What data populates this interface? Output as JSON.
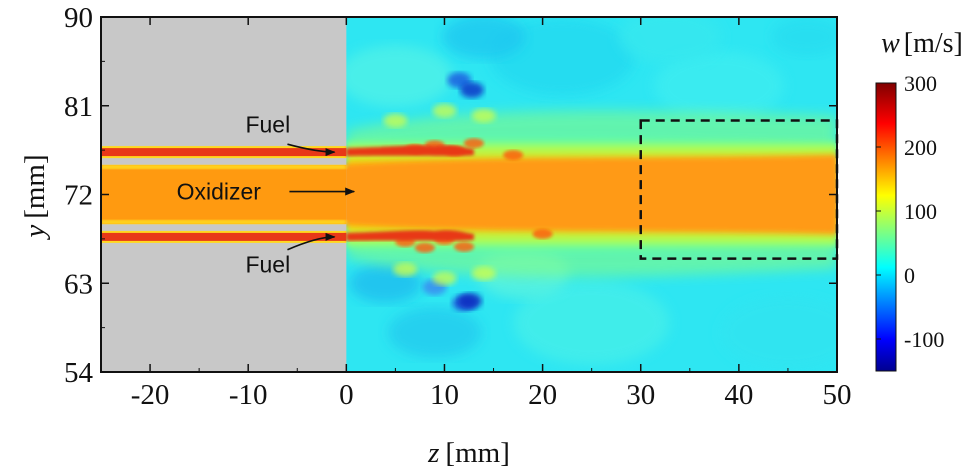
{
  "chart_data": {
    "type": "heatmap",
    "xlabel_var": "z",
    "xlabel_unit": "[mm]",
    "ylabel_var": "y",
    "ylabel_unit": "[mm]",
    "xlim": [
      -25,
      50
    ],
    "ylim": [
      54,
      90
    ],
    "xticks": [
      "-20",
      "-10",
      "0",
      "10",
      "20",
      "30",
      "40",
      "50"
    ],
    "xtick_values": [
      -20,
      -10,
      0,
      10,
      20,
      30,
      40,
      50
    ],
    "yticks": [
      "90",
      "81",
      "72",
      "63",
      "54"
    ],
    "ytick_values": [
      90,
      81,
      72,
      63,
      54
    ],
    "colorbar": {
      "label_var": "w",
      "label_unit": "[m/s]",
      "ticks": [
        "300",
        "200",
        "100",
        "0",
        "-100"
      ],
      "tick_values": [
        300,
        200,
        100,
        0,
        -100
      ],
      "range": [
        -150,
        300
      ],
      "colormap": "jet"
    },
    "region_solid_wall": {
      "z": [
        -25,
        0
      ],
      "color": "#c8c8c8"
    },
    "jets": [
      {
        "name": "Fuel",
        "y_center": 76.3,
        "velocity": 260
      },
      {
        "name": "Oxidizer",
        "y_center": 72,
        "velocity": 210
      },
      {
        "name": "Fuel",
        "y_center": 67.7,
        "velocity": 260
      }
    ],
    "annotations": [
      {
        "text": "Fuel",
        "z": -8,
        "y": 78.3
      },
      {
        "text": "Oxidizer",
        "z": -13,
        "y": 72.3
      },
      {
        "text": "Fuel",
        "z": -8,
        "y": 64.9
      }
    ],
    "dashed_box": {
      "z": [
        30,
        50
      ],
      "y": [
        65.5,
        79.5
      ]
    }
  },
  "colors": {
    "wall": "#c8c8c8",
    "frame": "#111111"
  }
}
